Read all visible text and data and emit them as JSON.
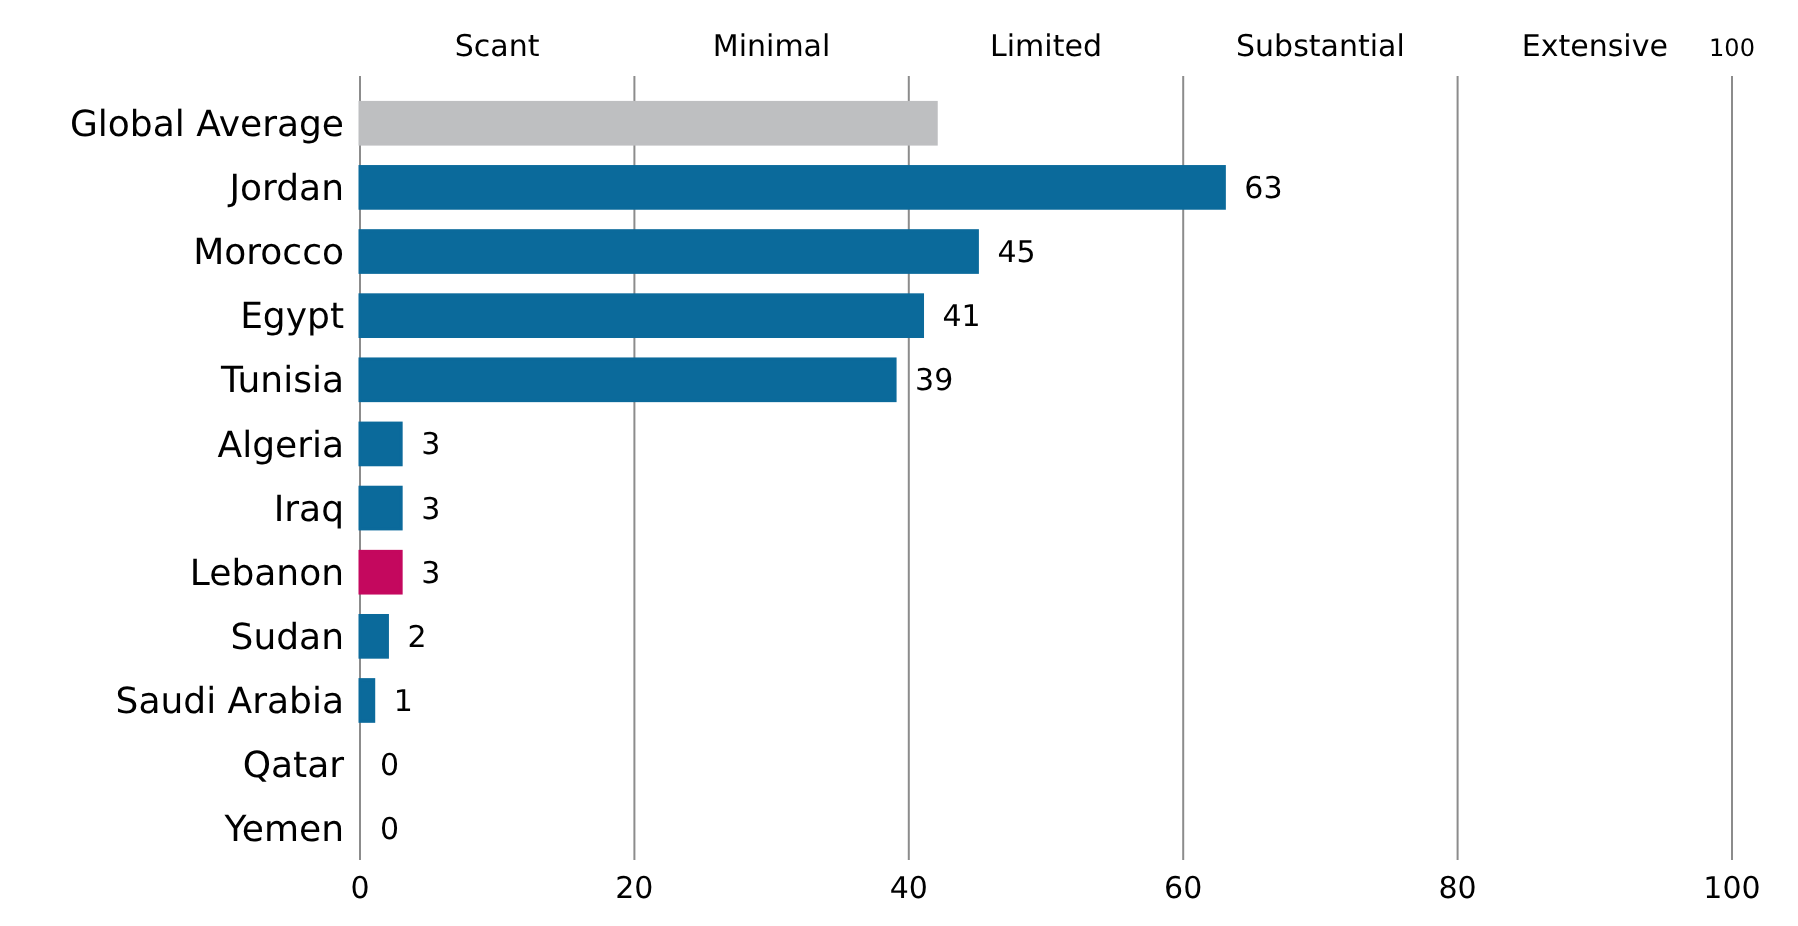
{
  "chart_data": {
    "type": "bar",
    "orientation": "horizontal",
    "categories": [
      "Global Average",
      "Jordan",
      "Morocco",
      "Egypt",
      "Tunisia",
      "Algeria",
      "Iraq",
      "Lebanon",
      "Sudan",
      "Saudi Arabia",
      "Qatar",
      "Yemen"
    ],
    "values": [
      42,
      63,
      45,
      41,
      39,
      3,
      3,
      3,
      2,
      1,
      0,
      0
    ],
    "colors": [
      "#bebfc1",
      "#0b6a9b",
      "#0b6a9b",
      "#0b6a9b",
      "#0b6a9b",
      "#0b6a9b",
      "#0b6a9b",
      "#c4085e",
      "#0b6a9b",
      "#0b6a9b",
      "#0b6a9b",
      "#0b6a9b"
    ],
    "value_labels": [
      null,
      "63",
      "45",
      "41",
      "39",
      "3",
      "3",
      "3",
      "2",
      "1",
      "0",
      "0"
    ],
    "xlim": [
      0,
      100
    ],
    "xticks": [
      0,
      20,
      40,
      60,
      80,
      100
    ],
    "annotations": [
      "Scant",
      "Minimal",
      "Limited",
      "Substantial",
      "Extensive",
      "100"
    ],
    "grid": "x"
  }
}
